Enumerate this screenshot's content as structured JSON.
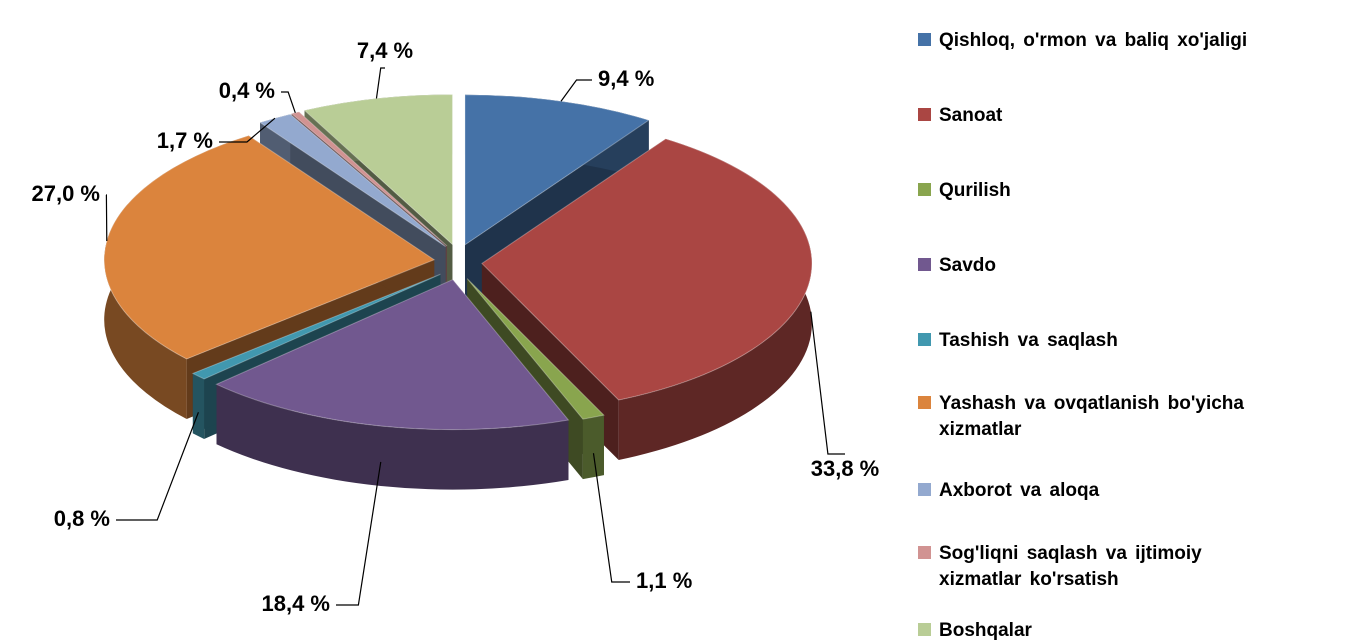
{
  "chart_data": {
    "type": "pie3d",
    "categories": [
      "Qishloq, o'rmon va baliq xo'jaligi",
      "Sanoat",
      "Qurilish",
      "Savdo",
      "Tashish va saqlash",
      "Yashash va ovqatlanish bo'yicha xizmatlar",
      "Axborot va aloqa",
      "Sog'liqni saqlash va ijtimoiy xizmatlar ko'rsatish",
      "Boshqalar"
    ],
    "values": [
      9.4,
      33.8,
      1.1,
      18.4,
      0.8,
      27.0,
      1.7,
      0.4,
      7.4
    ],
    "value_labels": [
      "9,4 %",
      "33,8 %",
      "1,1 %",
      "18,4 %",
      "0,8 %",
      "27,0 %",
      "1,7 %",
      "0,4 %",
      "7,4 %"
    ],
    "colors": [
      "#4572a7",
      "#aa4643",
      "#89a54e",
      "#71588f",
      "#4198af",
      "#db843d",
      "#93a9cf",
      "#d19392",
      "#b9cd96"
    ],
    "legend": "right"
  }
}
